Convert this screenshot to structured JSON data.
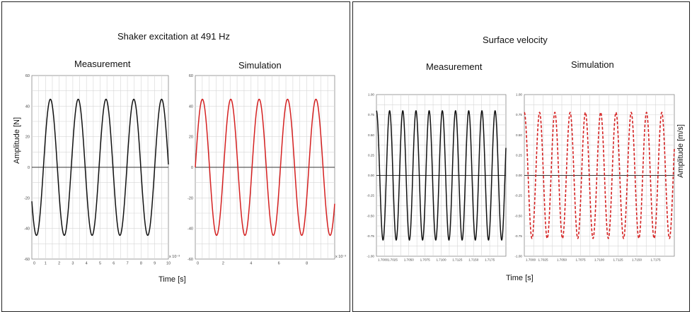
{
  "colors": {
    "measurement": "#111111",
    "simulation": "#d42020",
    "grid": "#d6d6d6",
    "zero_line": "#333333"
  },
  "left_panel": {
    "title": "Shaker excitation at 491 Hz",
    "ylabel": "Amplitude [N]",
    "xlabel": "Time [s]"
  },
  "right_panel": {
    "title": "Surface velocity",
    "ylabel": "Amplitude [m/s]",
    "xlabel": "Time [s]"
  },
  "chart_data": [
    {
      "type": "line",
      "title": "Measurement",
      "xlim": [
        0,
        10
      ],
      "ylim": [
        -60,
        60
      ],
      "xticks": [
        "0",
        "1",
        "2",
        "3",
        "4",
        "5",
        "6",
        "7",
        "8",
        "9",
        "10"
      ],
      "yticks": [
        "-60",
        "-40",
        "-20",
        "0",
        "20",
        "40",
        "60"
      ],
      "x_exponent": "x 10⁻³",
      "grid": true,
      "series": [
        {
          "amplitude": 44.5,
          "frequency_hz": 491,
          "phase_deg": 210,
          "style": "solid",
          "color": "#111111"
        }
      ]
    },
    {
      "type": "line",
      "title": "Simulation",
      "xlim": [
        0,
        10
      ],
      "ylim": [
        -60,
        60
      ],
      "xticks": [
        "0",
        "2",
        "4",
        "6",
        "8"
      ],
      "yticks": [
        "-60",
        "-40",
        "-20",
        "0",
        "20",
        "40",
        "60"
      ],
      "x_exponent": "x 10⁻³",
      "grid": true,
      "series": [
        {
          "amplitude": 44.5,
          "frequency_hz": 491,
          "phase_deg": 0,
          "style": "solid",
          "color": "#d42020"
        }
      ]
    },
    {
      "type": "line",
      "title": "Measurement",
      "xlim": [
        1.7,
        1.72
      ],
      "ylim": [
        -1.0,
        1.0
      ],
      "xticks": [
        "1.7000",
        "1.7025",
        "1.7050",
        "1.7075",
        "1.7100",
        "1.7125",
        "1.7150",
        "1.7175"
      ],
      "yticks": [
        "-1.00",
        "-0.75",
        "-0.50",
        "-0.25",
        "0.00",
        "0.25",
        "0.50",
        "0.75",
        "1.00"
      ],
      "grid": true,
      "series": [
        {
          "amplitude": 0.8,
          "frequency_hz": 491,
          "phase_deg": 90,
          "style": "solid",
          "color": "#111111"
        }
      ]
    },
    {
      "type": "line",
      "title": "Simulation",
      "xlim": [
        1.7,
        1.72
      ],
      "ylim": [
        -1.0,
        1.0
      ],
      "xticks": [
        "1.7000",
        "1.7025",
        "1.7050",
        "1.7075",
        "1.7100",
        "1.7125",
        "1.7150",
        "1.7175"
      ],
      "yticks": [
        "-1.00",
        "-0.75",
        "-0.50",
        "-0.25",
        "0.00",
        "0.25",
        "0.50",
        "0.75",
        "1.00"
      ],
      "grid": true,
      "series": [
        {
          "amplitude": 0.78,
          "frequency_hz": 491,
          "phase_deg": 90,
          "style": "dashed",
          "color": "#d42020"
        }
      ]
    }
  ]
}
